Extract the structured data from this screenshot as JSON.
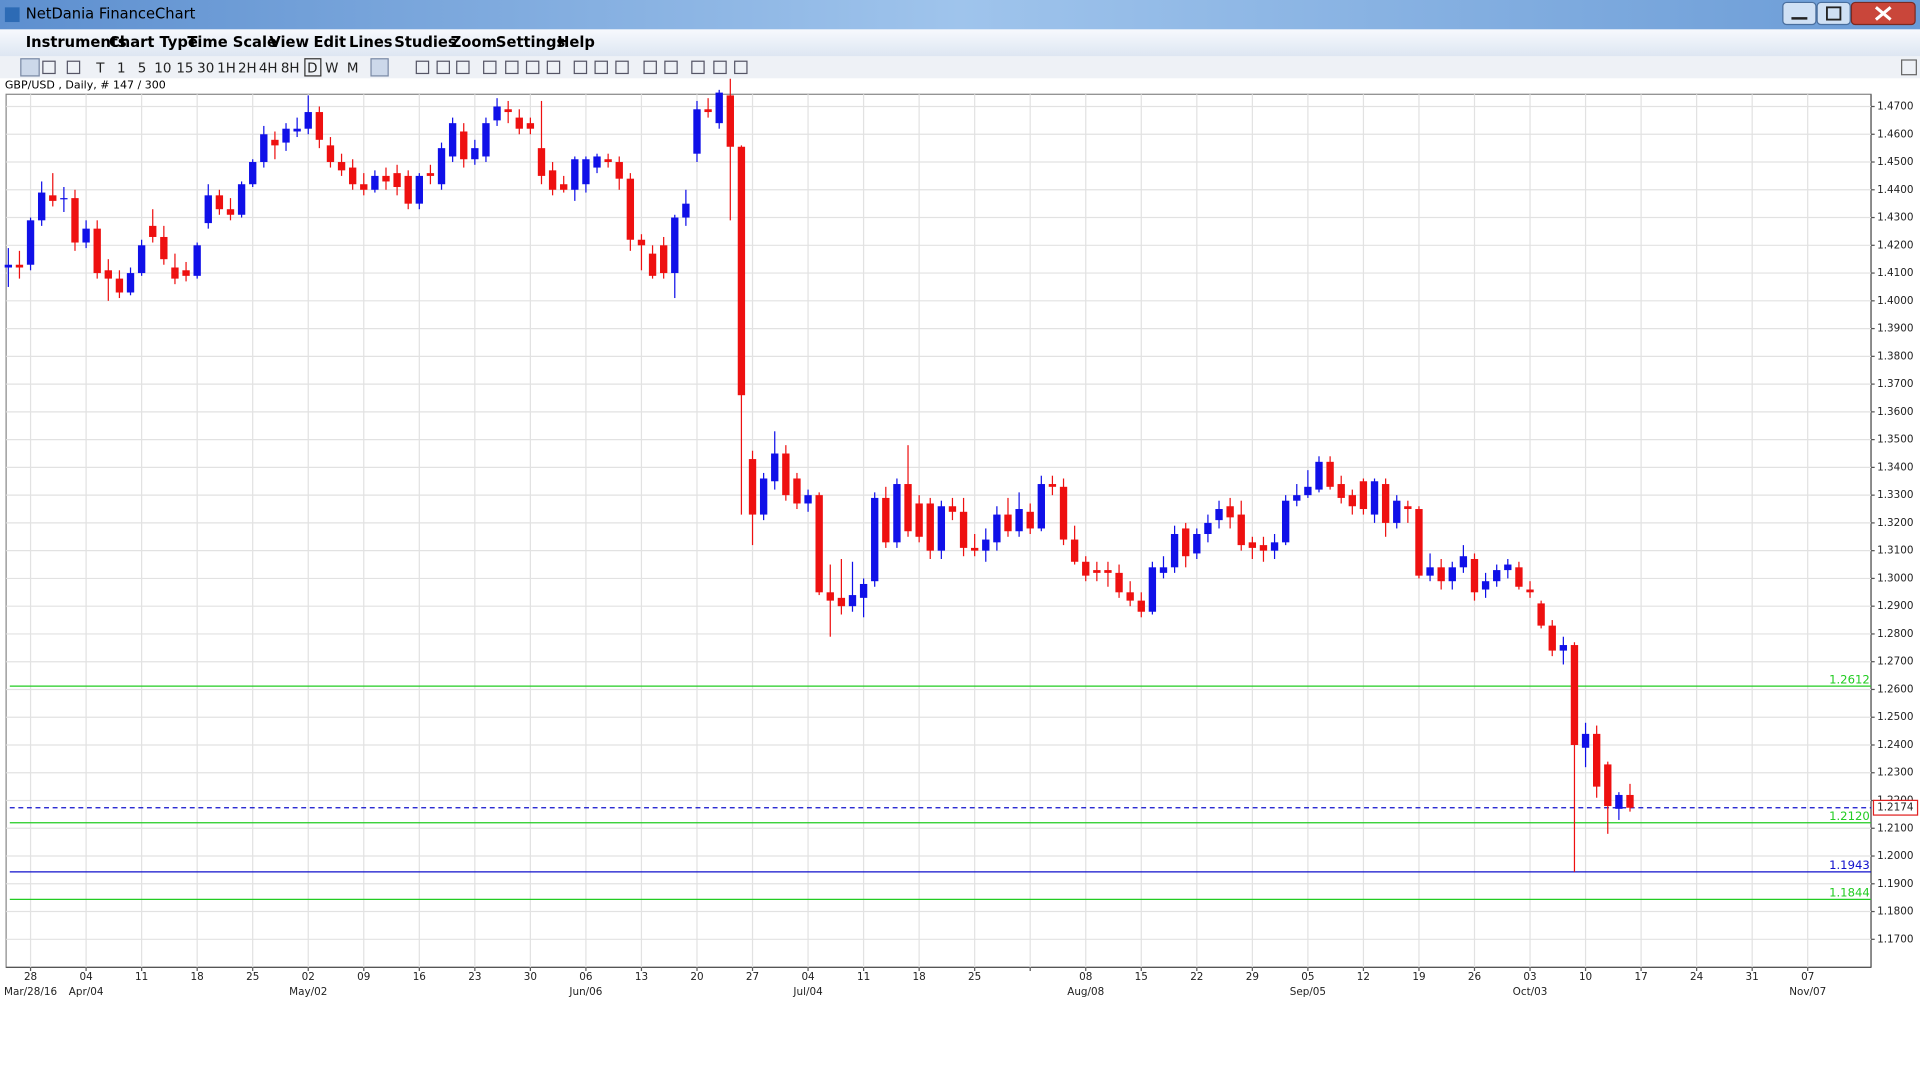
{
  "window": {
    "title": "NetDania FinanceChart",
    "menu": [
      "Instruments",
      "Chart Type",
      "Time Scale",
      "View",
      "Edit",
      "Lines",
      "Studies",
      "Zoom",
      "Settings",
      "Help"
    ],
    "toolbar": [
      "T",
      "1",
      "5",
      "10",
      "15",
      "30",
      "1H",
      "2H",
      "4H",
      "8H",
      "D",
      "W",
      "M"
    ]
  },
  "chart_data": {
    "type": "candlestick",
    "title": "GBP/USD , Daily, # 147 / 300",
    "up_color": "#1010e8",
    "down_color": "#ee1010",
    "grid": true,
    "ylim": [
      1.1599,
      1.4744
    ],
    "xlim": [
      -0.2,
      167.7
    ],
    "yticks": [
      {
        "value": 1.17,
        "label": "1.1700"
      },
      {
        "value": 1.18,
        "label": "1.1800"
      },
      {
        "value": 1.19,
        "label": "1.1900"
      },
      {
        "value": 1.2,
        "label": "1.2000"
      },
      {
        "value": 1.21,
        "label": "1.2100"
      },
      {
        "value": 1.22,
        "label": "1.2200"
      },
      {
        "value": 1.23,
        "label": "1.2300"
      },
      {
        "value": 1.24,
        "label": "1.2400"
      },
      {
        "value": 1.25,
        "label": "1.2500"
      },
      {
        "value": 1.26,
        "label": "1.2600"
      },
      {
        "value": 1.27,
        "label": "1.2700"
      },
      {
        "value": 1.28,
        "label": "1.2800"
      },
      {
        "value": 1.29,
        "label": "1.2900"
      },
      {
        "value": 1.3,
        "label": "1.3000"
      },
      {
        "value": 1.31,
        "label": "1.3100"
      },
      {
        "value": 1.32,
        "label": "1.3200"
      },
      {
        "value": 1.33,
        "label": "1.3300"
      },
      {
        "value": 1.34,
        "label": "1.3400"
      },
      {
        "value": 1.35,
        "label": "1.3500"
      },
      {
        "value": 1.36,
        "label": "1.3600"
      },
      {
        "value": 1.37,
        "label": "1.3700"
      },
      {
        "value": 1.38,
        "label": "1.3800"
      },
      {
        "value": 1.39,
        "label": "1.3900"
      },
      {
        "value": 1.4,
        "label": "1.4000"
      },
      {
        "value": 1.41,
        "label": "1.4100"
      },
      {
        "value": 1.42,
        "label": "1.4200"
      },
      {
        "value": 1.43,
        "label": "1.4300"
      },
      {
        "value": 1.44,
        "label": "1.4400"
      },
      {
        "value": 1.45,
        "label": "1.4500"
      },
      {
        "value": 1.46,
        "label": "1.4600"
      },
      {
        "value": 1.47,
        "label": "1.4700"
      }
    ],
    "xticks": [
      {
        "value": 2,
        "label": "28"
      },
      {
        "value": 7,
        "label": "04"
      },
      {
        "value": 12,
        "label": "11"
      },
      {
        "value": 17,
        "label": "18"
      },
      {
        "value": 22,
        "label": "25"
      },
      {
        "value": 27,
        "label": "02"
      },
      {
        "value": 32,
        "label": "09"
      },
      {
        "value": 37,
        "label": "16"
      },
      {
        "value": 42,
        "label": "23"
      },
      {
        "value": 47,
        "label": "30"
      },
      {
        "value": 52,
        "label": "06"
      },
      {
        "value": 57,
        "label": "13"
      },
      {
        "value": 62,
        "label": "20"
      },
      {
        "value": 67,
        "label": "27"
      },
      {
        "value": 72,
        "label": "04"
      },
      {
        "value": 77,
        "label": "11"
      },
      {
        "value": 82,
        "label": "18"
      },
      {
        "value": 87,
        "label": "25"
      },
      {
        "value": 92,
        "label": null
      },
      {
        "value": 97,
        "label": "08"
      },
      {
        "value": 102,
        "label": "15"
      },
      {
        "value": 107,
        "label": "22"
      },
      {
        "value": 112,
        "label": "29"
      },
      {
        "value": 117,
        "label": "05"
      },
      {
        "value": 122,
        "label": "12"
      },
      {
        "value": 127,
        "label": "19"
      },
      {
        "value": 132,
        "label": "26"
      },
      {
        "value": 137,
        "label": "03"
      },
      {
        "value": 142,
        "label": "10"
      },
      {
        "value": 147,
        "label": "17"
      },
      {
        "value": 152,
        "label": "24"
      },
      {
        "value": 157,
        "label": "31"
      },
      {
        "value": 162,
        "label": "07"
      }
    ],
    "month_ticks": [
      {
        "value": 2,
        "label": "Mar/28/16"
      },
      {
        "value": 7,
        "label": "Apr/04"
      },
      {
        "value": 27,
        "label": "May/02"
      },
      {
        "value": 52,
        "label": "Jun/06"
      },
      {
        "value": 72,
        "label": "Jul/04"
      },
      {
        "value": 97,
        "label": "Aug/08"
      },
      {
        "value": 117,
        "label": "Sep/05"
      },
      {
        "value": 137,
        "label": "Oct/03"
      },
      {
        "value": 162,
        "label": "Nov/07"
      }
    ],
    "levels": [
      {
        "value": 1.2612,
        "label": "1.2612",
        "color": "#22cc22",
        "style": "solid"
      },
      {
        "value": 1.212,
        "label": "1.2120",
        "color": "#22cc22",
        "style": "solid"
      },
      {
        "value": 1.1943,
        "label": "1.1943",
        "color": "#1010cc",
        "style": "solid"
      },
      {
        "value": 1.1844,
        "label": "1.1844",
        "color": "#22cc22",
        "style": "solid"
      },
      {
        "value": 1.2174,
        "label": "1.2174",
        "color": "#1010cc",
        "style": "dashed",
        "boxed": true
      }
    ],
    "ohlc": [
      [
        1.412,
        1.419,
        1.405,
        1.413
      ],
      [
        1.413,
        1.418,
        1.408,
        1.412
      ],
      [
        1.413,
        1.43,
        1.411,
        1.429
      ],
      [
        1.429,
        1.443,
        1.427,
        1.439
      ],
      [
        1.438,
        1.446,
        1.434,
        1.436
      ],
      [
        1.437,
        1.441,
        1.432,
        1.437
      ],
      [
        1.437,
        1.44,
        1.418,
        1.421
      ],
      [
        1.421,
        1.429,
        1.419,
        1.426
      ],
      [
        1.426,
        1.429,
        1.408,
        1.41
      ],
      [
        1.411,
        1.415,
        1.4,
        1.408
      ],
      [
        1.408,
        1.411,
        1.401,
        1.403
      ],
      [
        1.403,
        1.412,
        1.402,
        1.41
      ],
      [
        1.41,
        1.422,
        1.409,
        1.42
      ],
      [
        1.427,
        1.433,
        1.421,
        1.423
      ],
      [
        1.423,
        1.427,
        1.413,
        1.415
      ],
      [
        1.412,
        1.417,
        1.406,
        1.408
      ],
      [
        1.411,
        1.414,
        1.407,
        1.409
      ],
      [
        1.409,
        1.421,
        1.408,
        1.42
      ],
      [
        1.428,
        1.442,
        1.426,
        1.438
      ],
      [
        1.438,
        1.44,
        1.431,
        1.433
      ],
      [
        1.433,
        1.437,
        1.429,
        1.431
      ],
      [
        1.431,
        1.443,
        1.43,
        1.442
      ],
      [
        1.442,
        1.451,
        1.441,
        1.45
      ],
      [
        1.45,
        1.463,
        1.448,
        1.46
      ],
      [
        1.458,
        1.461,
        1.451,
        1.456
      ],
      [
        1.457,
        1.464,
        1.454,
        1.462
      ],
      [
        1.461,
        1.466,
        1.459,
        1.462
      ],
      [
        1.462,
        1.474,
        1.46,
        1.468
      ],
      [
        1.468,
        1.47,
        1.455,
        1.458
      ],
      [
        1.456,
        1.459,
        1.448,
        1.45
      ],
      [
        1.45,
        1.453,
        1.445,
        1.447
      ],
      [
        1.448,
        1.451,
        1.44,
        1.442
      ],
      [
        1.442,
        1.446,
        1.438,
        1.44
      ],
      [
        1.44,
        1.447,
        1.439,
        1.445
      ],
      [
        1.445,
        1.448,
        1.44,
        1.443
      ],
      [
        1.446,
        1.449,
        1.438,
        1.441
      ],
      [
        1.445,
        1.447,
        1.433,
        1.435
      ],
      [
        1.435,
        1.446,
        1.433,
        1.445
      ],
      [
        1.446,
        1.449,
        1.442,
        1.445
      ],
      [
        1.442,
        1.457,
        1.44,
        1.455
      ],
      [
        1.452,
        1.466,
        1.45,
        1.464
      ],
      [
        1.461,
        1.464,
        1.448,
        1.451
      ],
      [
        1.451,
        1.458,
        1.449,
        1.455
      ],
      [
        1.452,
        1.466,
        1.45,
        1.464
      ],
      [
        1.465,
        1.473,
        1.463,
        1.47
      ],
      [
        1.469,
        1.472,
        1.464,
        1.468
      ],
      [
        1.466,
        1.469,
        1.46,
        1.462
      ],
      [
        1.464,
        1.466,
        1.46,
        1.462
      ],
      [
        1.455,
        1.472,
        1.442,
        1.445
      ],
      [
        1.447,
        1.45,
        1.438,
        1.44
      ],
      [
        1.442,
        1.445,
        1.439,
        1.44
      ],
      [
        1.44,
        1.452,
        1.436,
        1.451
      ],
      [
        1.442,
        1.452,
        1.439,
        1.451
      ],
      [
        1.448,
        1.453,
        1.446,
        1.452
      ],
      [
        1.451,
        1.453,
        1.448,
        1.45
      ],
      [
        1.45,
        1.452,
        1.44,
        1.444
      ],
      [
        1.444,
        1.446,
        1.418,
        1.422
      ],
      [
        1.422,
        1.424,
        1.411,
        1.42
      ],
      [
        1.417,
        1.42,
        1.408,
        1.409
      ],
      [
        1.42,
        1.423,
        1.408,
        1.41
      ],
      [
        1.41,
        1.431,
        1.401,
        1.43
      ],
      [
        1.43,
        1.44,
        1.427,
        1.435
      ],
      [
        1.453,
        1.472,
        1.45,
        1.469
      ],
      [
        1.469,
        1.473,
        1.466,
        1.468
      ],
      [
        1.464,
        1.476,
        1.462,
        1.475
      ],
      [
        1.474,
        1.48,
        1.429,
        1.4555
      ],
      [
        1.4555,
        1.456,
        1.323,
        1.366
      ],
      [
        1.343,
        1.346,
        1.312,
        1.323
      ],
      [
        1.323,
        1.338,
        1.321,
        1.336
      ],
      [
        1.335,
        1.353,
        1.332,
        1.345
      ],
      [
        1.345,
        1.348,
        1.328,
        1.33
      ],
      [
        1.336,
        1.338,
        1.325,
        1.327
      ],
      [
        1.327,
        1.332,
        1.324,
        1.33
      ],
      [
        1.33,
        1.331,
        1.294,
        1.295
      ],
      [
        1.295,
        1.305,
        1.279,
        1.292
      ],
      [
        1.293,
        1.307,
        1.287,
        1.29
      ],
      [
        1.29,
        1.306,
        1.288,
        1.294
      ],
      [
        1.293,
        1.3,
        1.286,
        1.298
      ],
      [
        1.299,
        1.331,
        1.297,
        1.329
      ],
      [
        1.329,
        1.333,
        1.311,
        1.313
      ],
      [
        1.313,
        1.336,
        1.311,
        1.334
      ],
      [
        1.334,
        1.348,
        1.315,
        1.317
      ],
      [
        1.327,
        1.33,
        1.313,
        1.315
      ],
      [
        1.327,
        1.329,
        1.307,
        1.31
      ],
      [
        1.31,
        1.328,
        1.307,
        1.326
      ],
      [
        1.326,
        1.329,
        1.321,
        1.324
      ],
      [
        1.324,
        1.329,
        1.308,
        1.311
      ],
      [
        1.311,
        1.316,
        1.308,
        1.31
      ],
      [
        1.31,
        1.318,
        1.306,
        1.314
      ],
      [
        1.313,
        1.326,
        1.31,
        1.323
      ],
      [
        1.323,
        1.329,
        1.315,
        1.317
      ],
      [
        1.317,
        1.331,
        1.315,
        1.325
      ],
      [
        1.324,
        1.327,
        1.316,
        1.318
      ],
      [
        1.318,
        1.337,
        1.317,
        1.334
      ],
      [
        1.334,
        1.337,
        1.33,
        1.333
      ],
      [
        1.333,
        1.336,
        1.312,
        1.314
      ],
      [
        1.314,
        1.319,
        1.305,
        1.306
      ],
      [
        1.306,
        1.308,
        1.299,
        1.301
      ],
      [
        1.303,
        1.306,
        1.299,
        1.302
      ],
      [
        1.303,
        1.306,
        1.297,
        1.302
      ],
      [
        1.302,
        1.305,
        1.293,
        1.295
      ],
      [
        1.295,
        1.299,
        1.29,
        1.292
      ],
      [
        1.292,
        1.295,
        1.286,
        1.288
      ],
      [
        1.288,
        1.306,
        1.287,
        1.304
      ],
      [
        1.302,
        1.308,
        1.3,
        1.304
      ],
      [
        1.304,
        1.319,
        1.302,
        1.316
      ],
      [
        1.318,
        1.32,
        1.304,
        1.308
      ],
      [
        1.309,
        1.318,
        1.307,
        1.316
      ],
      [
        1.316,
        1.323,
        1.313,
        1.32
      ],
      [
        1.321,
        1.328,
        1.318,
        1.325
      ],
      [
        1.326,
        1.329,
        1.318,
        1.322
      ],
      [
        1.323,
        1.328,
        1.31,
        1.312
      ],
      [
        1.313,
        1.315,
        1.307,
        1.311
      ],
      [
        1.312,
        1.315,
        1.306,
        1.31
      ],
      [
        1.31,
        1.316,
        1.307,
        1.313
      ],
      [
        1.313,
        1.33,
        1.312,
        1.328
      ],
      [
        1.328,
        1.334,
        1.326,
        1.33
      ],
      [
        1.33,
        1.339,
        1.329,
        1.333
      ],
      [
        1.332,
        1.344,
        1.331,
        1.342
      ],
      [
        1.342,
        1.344,
        1.332,
        1.333
      ],
      [
        1.334,
        1.337,
        1.327,
        1.329
      ],
      [
        1.33,
        1.332,
        1.323,
        1.326
      ],
      [
        1.335,
        1.336,
        1.323,
        1.325
      ],
      [
        1.323,
        1.336,
        1.32,
        1.335
      ],
      [
        1.334,
        1.336,
        1.315,
        1.32
      ],
      [
        1.32,
        1.33,
        1.318,
        1.328
      ],
      [
        1.326,
        1.328,
        1.32,
        1.325
      ],
      [
        1.325,
        1.326,
        1.3,
        1.301
      ],
      [
        1.301,
        1.309,
        1.299,
        1.304
      ],
      [
        1.304,
        1.307,
        1.296,
        1.299
      ],
      [
        1.299,
        1.306,
        1.296,
        1.304
      ],
      [
        1.304,
        1.312,
        1.302,
        1.308
      ],
      [
        1.307,
        1.309,
        1.292,
        1.295
      ],
      [
        1.296,
        1.302,
        1.293,
        1.299
      ],
      [
        1.299,
        1.305,
        1.297,
        1.303
      ],
      [
        1.303,
        1.307,
        1.3,
        1.305
      ],
      [
        1.304,
        1.306,
        1.296,
        1.297
      ],
      [
        1.296,
        1.299,
        1.293,
        1.295
      ],
      [
        1.291,
        1.292,
        1.282,
        1.283
      ],
      [
        1.283,
        1.285,
        1.272,
        1.274
      ],
      [
        1.274,
        1.279,
        1.269,
        1.276
      ],
      [
        1.276,
        1.277,
        1.1943,
        1.24
      ],
      [
        1.239,
        1.248,
        1.232,
        1.244
      ],
      [
        1.244,
        1.247,
        1.221,
        1.225
      ],
      [
        1.233,
        1.234,
        1.208,
        1.218
      ],
      [
        1.217,
        1.223,
        1.213,
        1.222
      ],
      [
        1.222,
        1.226,
        1.216,
        1.2174
      ]
    ]
  }
}
